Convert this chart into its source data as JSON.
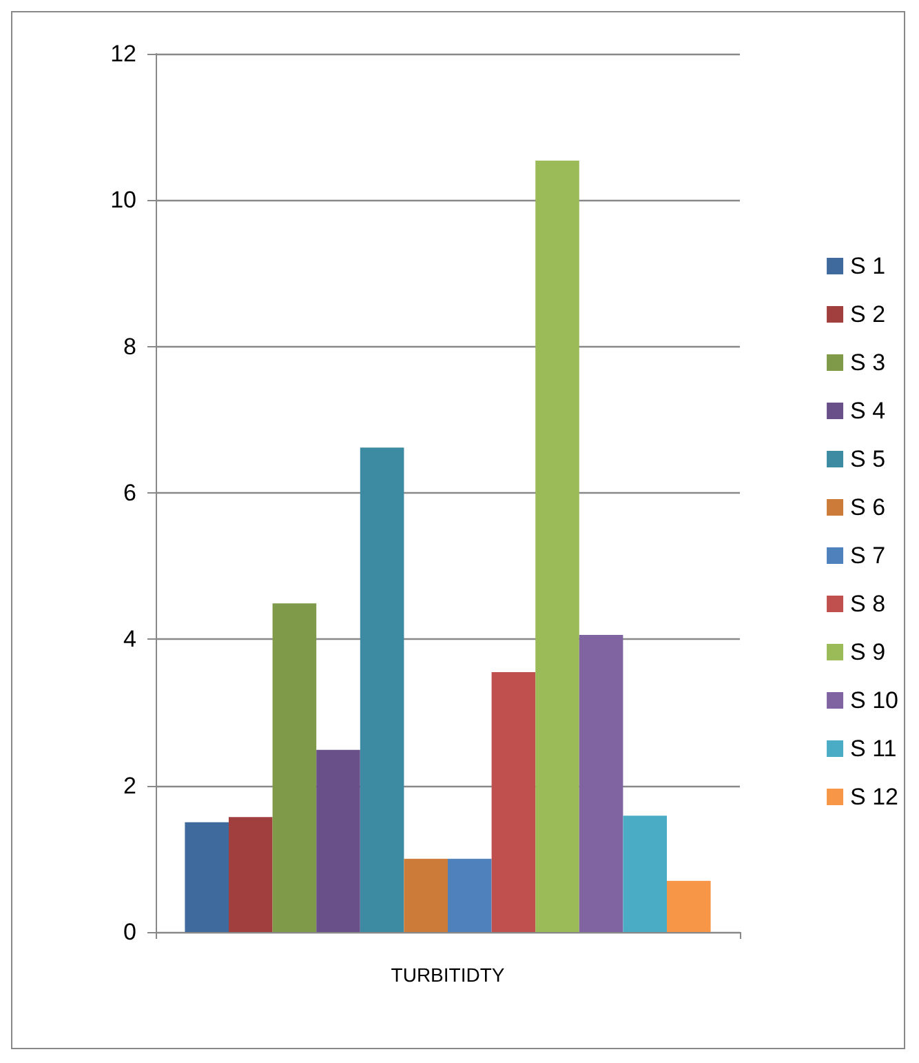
{
  "chart_data": {
    "type": "bar",
    "categories": [
      "TURBITIDTY"
    ],
    "series": [
      {
        "name": "S 1",
        "color": "#3f6a9e",
        "values": [
          1.5
        ]
      },
      {
        "name": "S 2",
        "color": "#a03f3d",
        "values": [
          1.57
        ]
      },
      {
        "name": "S 3",
        "color": "#7f9a48",
        "values": [
          4.49
        ]
      },
      {
        "name": "S 4",
        "color": "#6a5088",
        "values": [
          2.49
        ]
      },
      {
        "name": "S 5",
        "color": "#3c8ba3",
        "values": [
          6.62
        ]
      },
      {
        "name": "S 6",
        "color": "#cc7c38",
        "values": [
          1.0
        ]
      },
      {
        "name": "S 7",
        "color": "#4f81bd",
        "values": [
          1.0
        ]
      },
      {
        "name": "S 8",
        "color": "#c0504d",
        "values": [
          3.55
        ]
      },
      {
        "name": "S 9",
        "color": "#9bbb59",
        "values": [
          10.54
        ]
      },
      {
        "name": "S 10",
        "color": "#8064a2",
        "values": [
          4.06
        ]
      },
      {
        "name": "S 11",
        "color": "#4bacc6",
        "values": [
          1.59
        ]
      },
      {
        "name": "S 12",
        "color": "#f79646",
        "values": [
          0.7
        ]
      }
    ],
    "ylim": [
      0,
      12
    ],
    "yticks": [
      0,
      2,
      4,
      6,
      8,
      10,
      12
    ],
    "grid": "y",
    "legend": "right"
  }
}
